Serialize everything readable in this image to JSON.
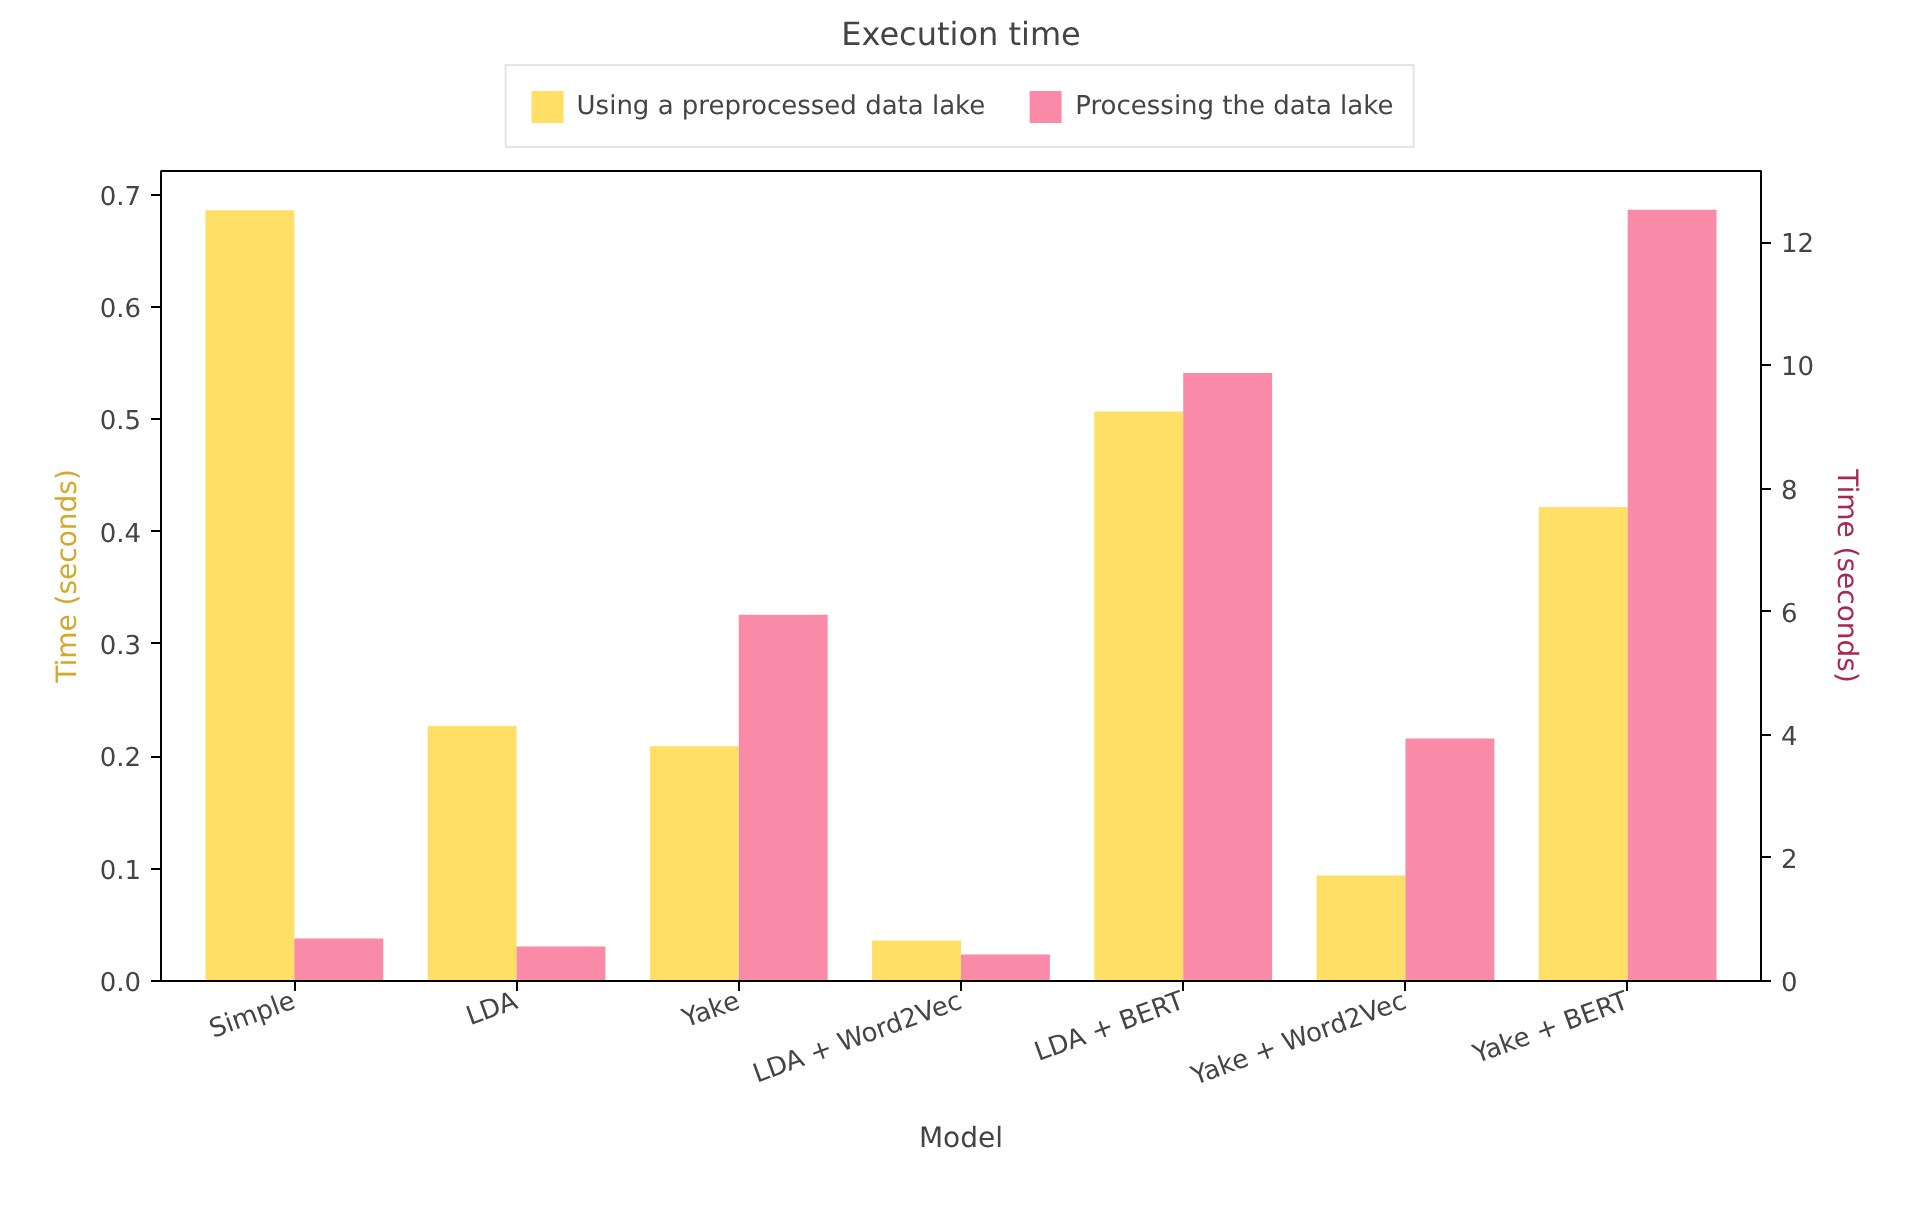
{
  "chart_data": {
    "type": "bar",
    "title": "Execution time",
    "xlabel": "Model",
    "ylabel": "Time (seconds)",
    "y2label": "Time (seconds)",
    "categories": [
      "Simple",
      "LDA",
      "Yake",
      "LDA + Word2Vec",
      "LDA + BERT",
      "Yake + Word2Vec",
      "Yake + BERT"
    ],
    "series": [
      {
        "name": "Using a preprocessed data lake",
        "color": "#ffdf66",
        "values": [
          0.686,
          0.227,
          0.209,
          0.036,
          0.507,
          0.094,
          0.422
        ]
      },
      {
        "name": "Processing the data lake",
        "color": "#f98ba8",
        "axis": "y2",
        "values": [
          0.69,
          0.56,
          5.95,
          0.43,
          9.88,
          3.94,
          12.53
        ]
      }
    ],
    "ylim": [
      0,
      0.721
    ],
    "yticks": [
      {
        "value": 0,
        "label": "0.0"
      },
      0.1,
      0.2,
      0.3,
      0.4,
      0.5,
      0.6,
      0.7
    ],
    "y2lim": [
      0,
      13.16
    ],
    "y2ticks": [
      0,
      2,
      4,
      6,
      8,
      10,
      12
    ],
    "legend": "top",
    "grid": false
  }
}
